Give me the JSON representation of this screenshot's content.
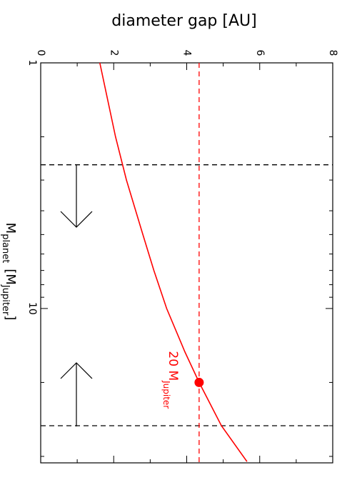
{
  "chart_data": {
    "type": "line",
    "title": "diameter gap [AU]",
    "xlabel": {
      "main": "M",
      "sub": "planet",
      "bracket": "[M",
      "bracket_sub": "Jupiter",
      "close": "]"
    },
    "x": [
      1,
      2,
      3,
      5,
      7,
      10,
      15,
      20,
      30,
      42
    ],
    "series": [
      {
        "color": "#ff0000",
        "values": [
          1.62,
          2.05,
          2.35,
          2.8,
          3.1,
          3.45,
          3.95,
          4.34,
          4.95,
          5.65
        ]
      }
    ],
    "xlim": [
      1,
      42.5
    ],
    "xlog": true,
    "xticks": [
      1,
      10
    ],
    "xminorticks": [
      2,
      3,
      4,
      5,
      6,
      7,
      8,
      9,
      20,
      30,
      40
    ],
    "ylim": [
      0,
      8
    ],
    "yticks": [
      0,
      2,
      4,
      6,
      8
    ],
    "yminorticks": [
      1,
      3,
      5,
      7
    ],
    "vlines": [
      2.6,
      30
    ],
    "vline_color": "#000000",
    "hline": 4.34,
    "hline_color": "#ff0000",
    "marker": {
      "x": 20,
      "y": 4.34,
      "color": "#ff0000"
    },
    "annotation": {
      "text": "20 M",
      "sub": "Jupiter",
      "color": "#ff0000"
    }
  }
}
